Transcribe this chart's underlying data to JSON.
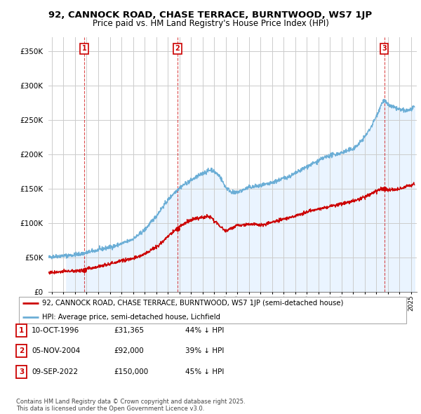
{
  "title": "92, CANNOCK ROAD, CHASE TERRACE, BURNTWOOD, WS7 1JP",
  "subtitle": "Price paid vs. HM Land Registry's House Price Index (HPI)",
  "ylabel_ticks": [
    "£0",
    "£50K",
    "£100K",
    "£150K",
    "£200K",
    "£250K",
    "£300K",
    "£350K"
  ],
  "ytick_values": [
    0,
    50000,
    100000,
    150000,
    200000,
    250000,
    300000,
    350000
  ],
  "ylim": [
    0,
    370000
  ],
  "xlim_start": 1993.7,
  "xlim_end": 2025.5,
  "sale_dates": [
    1996.78,
    2004.84,
    2022.69
  ],
  "sale_prices": [
    31365,
    92000,
    150000
  ],
  "sale_labels": [
    "1",
    "2",
    "3"
  ],
  "hpi_color": "#6baed6",
  "hpi_fill_color": "#ddeeff",
  "price_color": "#cc0000",
  "legend_price_label": "92, CANNOCK ROAD, CHASE TERRACE, BURNTWOOD, WS7 1JP (semi-detached house)",
  "legend_hpi_label": "HPI: Average price, semi-detached house, Lichfield",
  "table_entries": [
    {
      "num": "1",
      "date": "10-OCT-1996",
      "price": "£31,365",
      "hpi_diff": "44% ↓ HPI"
    },
    {
      "num": "2",
      "date": "05-NOV-2004",
      "price": "£92,000",
      "hpi_diff": "39% ↓ HPI"
    },
    {
      "num": "3",
      "date": "09-SEP-2022",
      "price": "£150,000",
      "hpi_diff": "45% ↓ HPI"
    }
  ],
  "footnote": "Contains HM Land Registry data © Crown copyright and database right 2025.\nThis data is licensed under the Open Government Licence v3.0.",
  "grid_color": "#cccccc",
  "hpi_waypoints_x": [
    1993.7,
    1994.0,
    1994.5,
    1995.0,
    1995.5,
    1996.0,
    1996.5,
    1997.0,
    1997.5,
    1998.0,
    1998.5,
    1999.0,
    1999.5,
    2000.0,
    2000.5,
    2001.0,
    2001.5,
    2002.0,
    2002.5,
    2003.0,
    2003.5,
    2004.0,
    2004.5,
    2005.0,
    2005.5,
    2006.0,
    2006.5,
    2007.0,
    2007.5,
    2007.8,
    2008.0,
    2008.5,
    2008.8,
    2009.0,
    2009.3,
    2009.5,
    2009.8,
    2010.0,
    2010.5,
    2011.0,
    2011.5,
    2012.0,
    2012.5,
    2013.0,
    2013.5,
    2014.0,
    2014.5,
    2015.0,
    2015.5,
    2016.0,
    2016.5,
    2017.0,
    2017.5,
    2018.0,
    2018.5,
    2019.0,
    2019.5,
    2020.0,
    2020.5,
    2021.0,
    2021.5,
    2022.0,
    2022.5,
    2022.69,
    2023.0,
    2023.5,
    2024.0,
    2024.5,
    2025.0,
    2025.3
  ],
  "hpi_waypoints_y": [
    50000,
    51000,
    52000,
    52500,
    53000,
    54000,
    55000,
    57000,
    59000,
    61000,
    63000,
    65000,
    67000,
    70000,
    73000,
    77000,
    83000,
    90000,
    100000,
    110000,
    122000,
    133000,
    143000,
    151000,
    157000,
    162000,
    167000,
    172000,
    176000,
    178000,
    175000,
    168000,
    158000,
    152000,
    148000,
    145000,
    143000,
    145000,
    148000,
    152000,
    153000,
    154000,
    156000,
    158000,
    162000,
    165000,
    168000,
    172000,
    177000,
    182000,
    186000,
    190000,
    195000,
    198000,
    200000,
    202000,
    205000,
    208000,
    215000,
    225000,
    238000,
    255000,
    275000,
    278000,
    272000,
    268000,
    265000,
    263000,
    265000,
    268000
  ],
  "price_waypoints_x": [
    1993.7,
    1994.0,
    1994.5,
    1995.0,
    1995.5,
    1996.0,
    1996.5,
    1996.78,
    1997.0,
    1997.5,
    1998.0,
    1998.5,
    1999.0,
    1999.5,
    2000.0,
    2000.5,
    2001.0,
    2001.5,
    2002.0,
    2002.5,
    2003.0,
    2003.5,
    2004.0,
    2004.5,
    2004.84,
    2005.0,
    2005.5,
    2006.0,
    2006.5,
    2007.0,
    2007.5,
    2007.8,
    2008.0,
    2008.5,
    2009.0,
    2009.5,
    2010.0,
    2010.5,
    2011.0,
    2011.5,
    2012.0,
    2012.5,
    2013.0,
    2013.5,
    2014.0,
    2014.5,
    2015.0,
    2015.5,
    2016.0,
    2016.5,
    2017.0,
    2017.5,
    2018.0,
    2018.5,
    2019.0,
    2019.5,
    2020.0,
    2020.5,
    2021.0,
    2021.5,
    2022.0,
    2022.5,
    2022.69,
    2023.0,
    2023.5,
    2024.0,
    2024.5,
    2025.0,
    2025.3
  ],
  "price_waypoints_y": [
    28000,
    28500,
    29000,
    29500,
    30000,
    30500,
    31000,
    31365,
    33000,
    35000,
    37000,
    39000,
    41000,
    43000,
    45000,
    47000,
    49000,
    51000,
    55000,
    60000,
    65000,
    72000,
    80000,
    88000,
    92000,
    95000,
    100000,
    104000,
    107000,
    108000,
    110000,
    108000,
    103000,
    96000,
    88000,
    93000,
    96000,
    97000,
    98000,
    99000,
    97000,
    99000,
    101000,
    103000,
    106000,
    108000,
    110000,
    113000,
    116000,
    118000,
    120000,
    122000,
    124000,
    126000,
    128000,
    130000,
    132000,
    135000,
    138000,
    142000,
    146000,
    150000,
    150000,
    148000,
    148000,
    150000,
    153000,
    155000,
    157000
  ]
}
